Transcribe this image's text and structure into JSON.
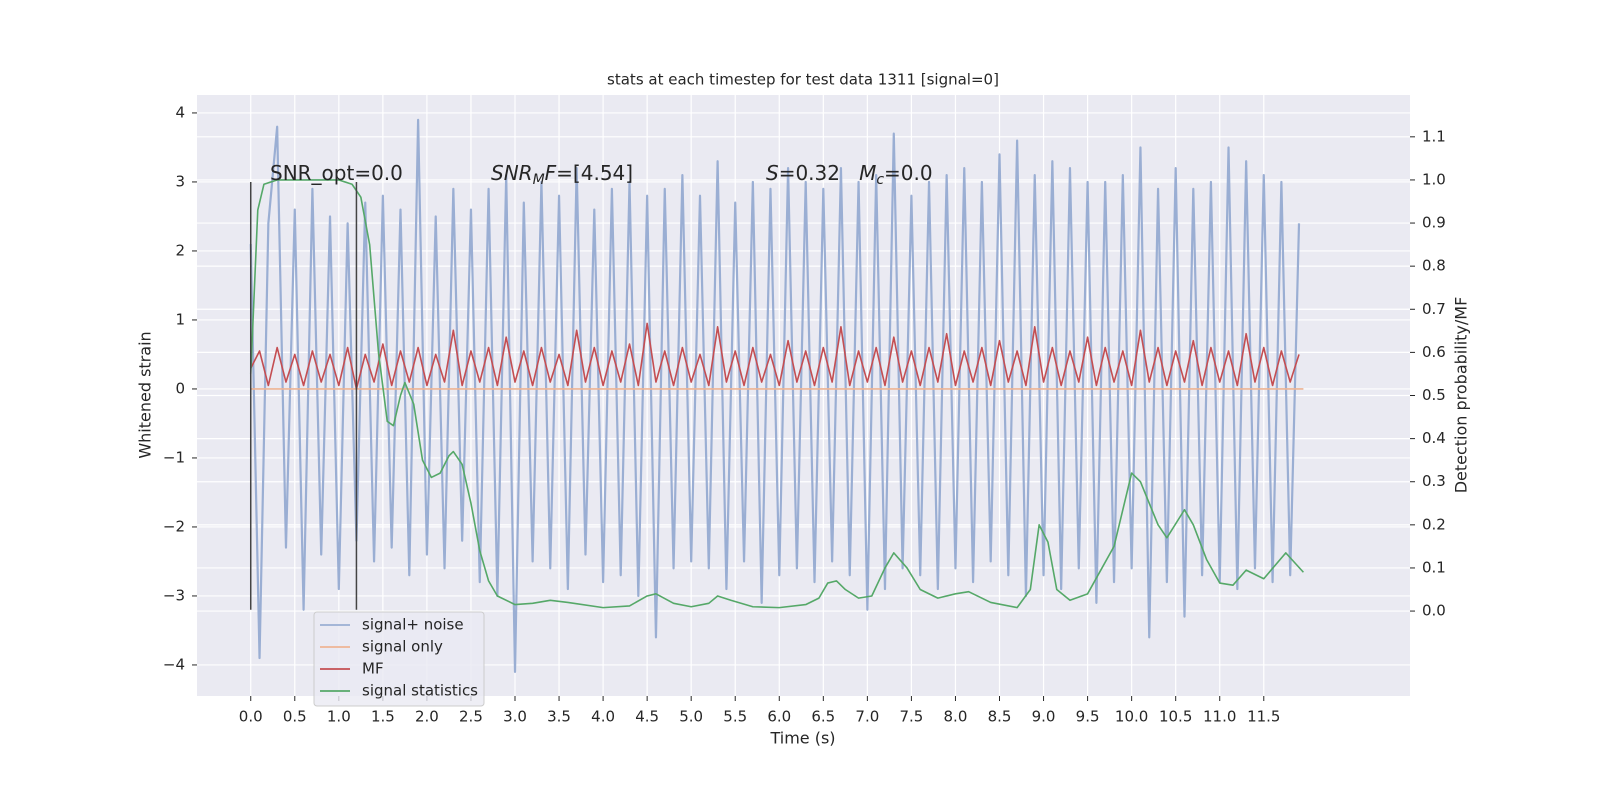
{
  "chart_data": {
    "type": "line",
    "title": "stats at each timestep for test data 1311 [signal=0]",
    "xlabel": "Time (s)",
    "ylabel": "Whitened strain",
    "y2label": "Detection probability/MF",
    "grid": true,
    "legend": "lower left",
    "xlim": [
      -0.61,
      13.16
    ],
    "ylim": [
      -4.45,
      4.26
    ],
    "y2lim": [
      -0.197,
      1.197
    ],
    "xticks": [
      {
        "value": 0,
        "label": "0.0"
      },
      {
        "value": 0.5,
        "label": "0.5"
      },
      {
        "value": 1,
        "label": "1.0"
      },
      {
        "value": 1.5,
        "label": "1.5"
      },
      {
        "value": 2,
        "label": "2.0"
      },
      {
        "value": 2.5,
        "label": "2.5"
      },
      {
        "value": 3,
        "label": "3.0"
      },
      {
        "value": 3.5,
        "label": "3.5"
      },
      {
        "value": 4,
        "label": "4.0"
      },
      {
        "value": 4.5,
        "label": "4.5"
      },
      {
        "value": 5,
        "label": "5.0"
      },
      {
        "value": 5.5,
        "label": "5.5"
      },
      {
        "value": 6,
        "label": "6.0"
      },
      {
        "value": 6.5,
        "label": "6.5"
      },
      {
        "value": 7,
        "label": "7.0"
      },
      {
        "value": 7.5,
        "label": "7.5"
      },
      {
        "value": 8,
        "label": "8.0"
      },
      {
        "value": 8.5,
        "label": "8.5"
      },
      {
        "value": 9,
        "label": "9.0"
      },
      {
        "value": 9.5,
        "label": "9.5"
      },
      {
        "value": 10,
        "label": "10.0"
      },
      {
        "value": 10.5,
        "label": "10.5"
      },
      {
        "value": 11,
        "label": "11.0"
      },
      {
        "value": 11.5,
        "label": "11.5"
      }
    ],
    "yticks": [
      {
        "value": -4,
        "label": "−4"
      },
      {
        "value": -3,
        "label": "−3"
      },
      {
        "value": -2,
        "label": "−2"
      },
      {
        "value": -1,
        "label": "−1"
      },
      0,
      1,
      2,
      3,
      4
    ],
    "y2ticks": [
      {
        "value": 0,
        "label": "0.0"
      },
      {
        "value": 0.1,
        "label": "0.1"
      },
      {
        "value": 0.2,
        "label": "0.2"
      },
      {
        "value": 0.3,
        "label": "0.3"
      },
      {
        "value": 0.4,
        "label": "0.4"
      },
      {
        "value": 0.5,
        "label": "0.5"
      },
      {
        "value": 0.6,
        "label": "0.6"
      },
      {
        "value": 0.7,
        "label": "0.7"
      },
      {
        "value": 0.8,
        "label": "0.8"
      },
      {
        "value": 0.9,
        "label": "0.9"
      },
      {
        "value": 1,
        "label": "1.0"
      },
      {
        "value": 1.1,
        "label": "1.1"
      }
    ],
    "annotations": [
      [
        "SNR_opt=0.0"
      ],
      [
        "SNR",
        "M",
        "F",
        "=[4.54]"
      ],
      [
        "S",
        "=0.32   ",
        "M",
        "c",
        "=0.0"
      ]
    ],
    "vlines": {
      "x": [
        0,
        1.2
      ],
      "ymin": -3.2,
      "ymax": 3.0,
      "color": "#444444"
    },
    "x": [
      0,
      0.1,
      0.2,
      0.3,
      0.4,
      0.5,
      0.6,
      0.7,
      0.8,
      0.9,
      1,
      1.1,
      1.2,
      1.3,
      1.4,
      1.5,
      1.6,
      1.7,
      1.8,
      1.9,
      2,
      2.1,
      2.2,
      2.3,
      2.4,
      2.5,
      2.6,
      2.7,
      2.8,
      2.9,
      3,
      3.1,
      3.2,
      3.3,
      3.4,
      3.5,
      3.6,
      3.7,
      3.8,
      3.9,
      4,
      4.1,
      4.2,
      4.3,
      4.4,
      4.5,
      4.6,
      4.7,
      4.8,
      4.9,
      5,
      5.1,
      5.2,
      5.3,
      5.4,
      5.5,
      5.6,
      5.7,
      5.8,
      5.9,
      6,
      6.1,
      6.2,
      6.3,
      6.4,
      6.5,
      6.6,
      6.7,
      6.8,
      6.9,
      7,
      7.1,
      7.2,
      7.3,
      7.4,
      7.5,
      7.6,
      7.7,
      7.8,
      7.9,
      8,
      8.1,
      8.2,
      8.3,
      8.4,
      8.5,
      8.6,
      8.7,
      8.8,
      8.9,
      9,
      9.1,
      9.2,
      9.3,
      9.4,
      9.5,
      9.6,
      9.7,
      9.8,
      9.9,
      10,
      10.1,
      10.2,
      10.3,
      10.4,
      10.5,
      10.6,
      10.7,
      10.8,
      10.9,
      11,
      11.1,
      11.2,
      11.3,
      11.4,
      11.5,
      11.6,
      11.7,
      11.8,
      11.9
    ],
    "series": [
      {
        "name": "signal+ noise",
        "color": "#9aaed3",
        "values": [
          2.1,
          -3.9,
          2.4,
          3.8,
          -2.3,
          2.6,
          -3.2,
          2.9,
          -2.4,
          2.5,
          -2.9,
          2.4,
          -2.2,
          2.7,
          -2.5,
          2.8,
          -2.3,
          2.6,
          -2.7,
          3.9,
          -2.4,
          2.5,
          -2.6,
          2.9,
          -2.2,
          2.6,
          -2.8,
          2.9,
          -3.0,
          3.1,
          -4.1,
          2.7,
          -2.5,
          3.0,
          -2.6,
          2.8,
          -2.9,
          3.2,
          -2.4,
          2.6,
          -2.8,
          2.9,
          -2.7,
          3.0,
          -3.0,
          2.8,
          -3.6,
          2.9,
          -2.6,
          3.1,
          -2.5,
          2.8,
          -2.6,
          3.3,
          -2.9,
          2.7,
          -2.5,
          3.0,
          -3.1,
          2.9,
          -2.7,
          3.2,
          -2.6,
          3.0,
          -2.8,
          2.9,
          -2.5,
          3.2,
          -2.7,
          3.0,
          -3.2,
          3.1,
          -2.9,
          3.7,
          -2.6,
          2.8,
          -2.7,
          3.0,
          -2.9,
          3.1,
          -2.6,
          3.2,
          -2.8,
          3.0,
          -2.5,
          3.4,
          -2.7,
          3.6,
          -3.0,
          3.1,
          -2.7,
          3.3,
          -2.9,
          3.2,
          -2.6,
          3.0,
          -3.1,
          3.0,
          -2.8,
          3.1,
          -2.6,
          3.5,
          -3.6,
          2.9,
          -2.8,
          3.2,
          -3.3,
          2.9,
          -2.7,
          3.0,
          -2.8,
          3.5,
          -2.9,
          3.3,
          -2.6,
          3.1,
          -2.8,
          3.0,
          -2.7,
          2.4
        ]
      },
      {
        "name": "signal only",
        "color": "#eeb494",
        "x": [
          0,
          11.95
        ],
        "values": [
          0,
          0
        ]
      },
      {
        "name": "MF",
        "color": "#c44e52",
        "values": [
          0.3,
          0.55,
          0.05,
          0.6,
          0.1,
          0.5,
          0.05,
          0.55,
          0.1,
          0.5,
          0.05,
          0.6,
          0.0,
          0.5,
          0.1,
          0.65,
          0.05,
          0.55,
          0.1,
          0.6,
          0.05,
          0.5,
          0.1,
          0.85,
          0.05,
          0.55,
          0.1,
          0.6,
          0.05,
          0.75,
          0.1,
          0.55,
          0.05,
          0.6,
          0.1,
          0.5,
          0.05,
          0.85,
          0.1,
          0.6,
          0.05,
          0.55,
          0.1,
          0.65,
          0.05,
          0.95,
          0.1,
          0.55,
          0.05,
          0.6,
          0.1,
          0.5,
          0.05,
          0.9,
          0.1,
          0.55,
          0.05,
          0.6,
          0.1,
          0.5,
          0.05,
          0.7,
          0.1,
          0.55,
          0.05,
          0.6,
          0.1,
          0.9,
          0.05,
          0.55,
          0.1,
          0.6,
          0.05,
          0.75,
          0.1,
          0.55,
          0.05,
          0.6,
          0.1,
          0.8,
          0.05,
          0.55,
          0.1,
          0.6,
          0.05,
          0.7,
          0.1,
          0.55,
          0.05,
          0.9,
          0.1,
          0.6,
          0.05,
          0.55,
          0.1,
          0.75,
          0.05,
          0.6,
          0.1,
          0.55,
          0.05,
          0.85,
          0.1,
          0.6,
          0.05,
          0.55,
          0.1,
          0.7,
          0.05,
          0.6,
          0.1,
          0.55,
          0.05,
          0.8,
          0.1,
          0.6,
          0.05,
          0.55,
          0.1,
          0.5
        ]
      },
      {
        "name": "signal statistics",
        "color": "#55a868",
        "axis": "y2",
        "x": [
          0,
          0.08,
          0.15,
          0.3,
          0.5,
          0.8,
          1.0,
          1.15,
          1.25,
          1.35,
          1.45,
          1.55,
          1.62,
          1.7,
          1.75,
          1.85,
          1.95,
          2.05,
          2.15,
          2.25,
          2.3,
          2.4,
          2.5,
          2.6,
          2.7,
          2.8,
          3.0,
          3.2,
          3.4,
          3.6,
          4.0,
          4.3,
          4.5,
          4.6,
          4.8,
          5.0,
          5.2,
          5.3,
          5.45,
          5.7,
          6.0,
          6.3,
          6.45,
          6.55,
          6.65,
          6.75,
          6.9,
          7.05,
          7.2,
          7.3,
          7.45,
          7.6,
          7.8,
          8.0,
          8.15,
          8.4,
          8.7,
          8.85,
          8.95,
          9.05,
          9.15,
          9.3,
          9.5,
          9.8,
          10.0,
          10.1,
          10.3,
          10.4,
          10.6,
          10.7,
          10.85,
          11.0,
          11.15,
          11.3,
          11.5,
          11.75,
          11.95
        ],
        "values": [
          0.55,
          0.93,
          0.99,
          1.0,
          1.0,
          1.0,
          1.0,
          0.99,
          0.96,
          0.85,
          0.6,
          0.44,
          0.43,
          0.5,
          0.53,
          0.48,
          0.35,
          0.31,
          0.32,
          0.36,
          0.37,
          0.34,
          0.25,
          0.14,
          0.07,
          0.035,
          0.015,
          0.018,
          0.025,
          0.02,
          0.008,
          0.012,
          0.035,
          0.04,
          0.018,
          0.01,
          0.018,
          0.035,
          0.025,
          0.01,
          0.008,
          0.015,
          0.03,
          0.065,
          0.07,
          0.05,
          0.03,
          0.035,
          0.1,
          0.135,
          0.1,
          0.05,
          0.03,
          0.04,
          0.045,
          0.02,
          0.008,
          0.05,
          0.2,
          0.16,
          0.05,
          0.025,
          0.04,
          0.15,
          0.32,
          0.3,
          0.2,
          0.17,
          0.235,
          0.2,
          0.12,
          0.065,
          0.06,
          0.095,
          0.075,
          0.135,
          0.09
        ]
      }
    ]
  }
}
